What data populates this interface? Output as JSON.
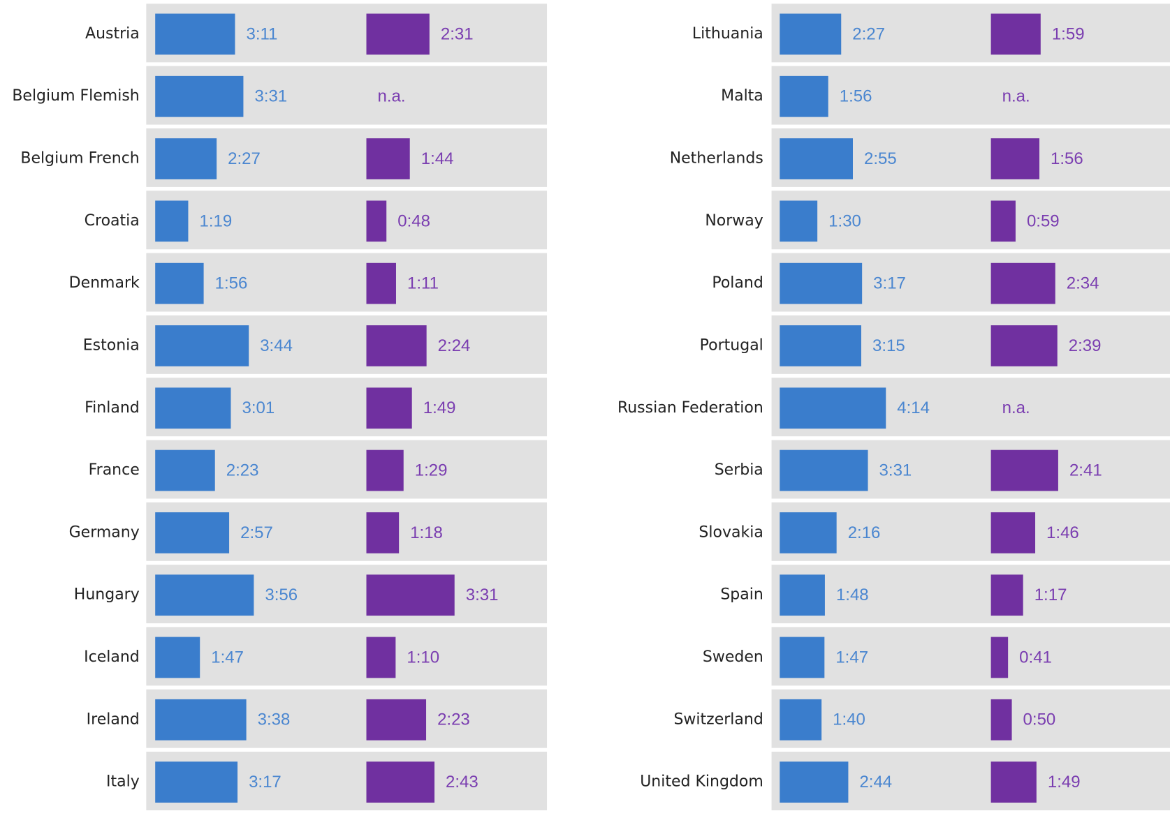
{
  "chart_data": [
    {
      "type": "bar",
      "horizontal": true,
      "categories": [
        "Austria",
        "Belgium Flemish",
        "Belgium French",
        "Croatia",
        "Denmark",
        "Estonia",
        "Finland",
        "France",
        "Germany",
        "Hungary",
        "Iceland",
        "Ireland",
        "Italy"
      ],
      "series": [
        {
          "color": "#3a7dcc",
          "values": [
            191,
            211,
            147,
            79,
            116,
            224,
            181,
            143,
            177,
            236,
            107,
            218,
            197
          ],
          "value_labels": [
            "3:11",
            "3:31",
            "2:27",
            "1:19",
            "1:56",
            "3:44",
            "3:01",
            "2:23",
            "2:57",
            "3:56",
            "1:47",
            "3:38",
            "3:17"
          ]
        },
        {
          "color": "#7030a0",
          "values": [
            151,
            null,
            104,
            48,
            71,
            144,
            109,
            89,
            78,
            211,
            70,
            143,
            163
          ],
          "value_labels": [
            "2:31",
            "n.a.",
            "1:44",
            "0:48",
            "1:11",
            "2:24",
            "1:49",
            "1:29",
            "1:18",
            "3:31",
            "1:10",
            "2:23",
            "2:43"
          ]
        }
      ]
    },
    {
      "type": "bar",
      "horizontal": true,
      "categories": [
        "Lithuania",
        "Malta",
        "Netherlands",
        "Norway",
        "Poland",
        "Portugal",
        "Russian Federation",
        "Serbia",
        "Slovakia",
        "Spain",
        "Sweden",
        "Switzerland",
        "United Kingdom"
      ],
      "series": [
        {
          "color": "#3a7dcc",
          "values": [
            147,
            116,
            175,
            90,
            197,
            195,
            254,
            211,
            136,
            108,
            107,
            100,
            164
          ],
          "value_labels": [
            "2:27",
            "1:56",
            "2:55",
            "1:30",
            "3:17",
            "3:15",
            "4:14",
            "3:31",
            "2:16",
            "1:48",
            "1:47",
            "1:40",
            "2:44"
          ]
        },
        {
          "color": "#7030a0",
          "values": [
            119,
            null,
            116,
            59,
            154,
            159,
            null,
            161,
            106,
            77,
            41,
            50,
            109
          ],
          "value_labels": [
            "1:59",
            "n.a.",
            "1:56",
            "0:59",
            "2:34",
            "2:39",
            "n.a.",
            "2:41",
            "1:46",
            "1:17",
            "0:41",
            "0:50",
            "1:49"
          ]
        }
      ]
    }
  ]
}
